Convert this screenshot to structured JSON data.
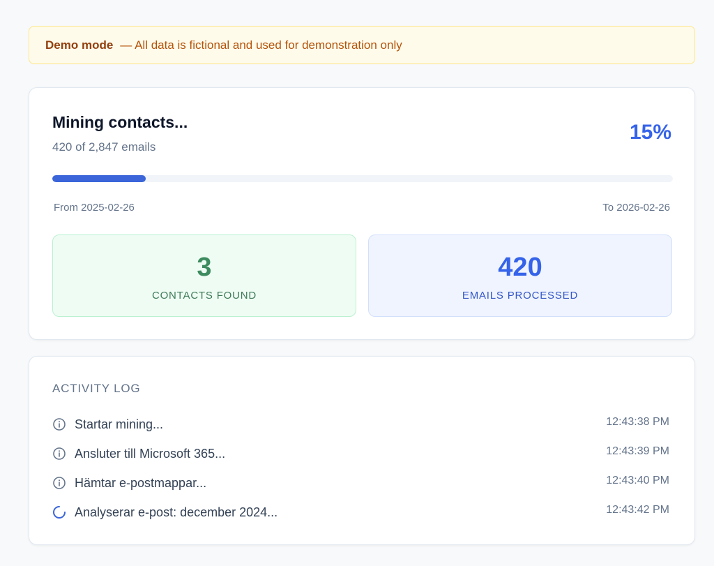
{
  "banner": {
    "title": "Demo mode",
    "message": "— All data is fictional and used for demonstration only"
  },
  "progress": {
    "title": "Mining contacts...",
    "subtitle": "420 of 2,847 emails",
    "percent_label": "15%",
    "fraction": 0.15,
    "range_from": "From 2025-02-26",
    "range_to": "To 2026-02-26"
  },
  "stats": {
    "contacts": {
      "value": "3",
      "label": "CONTACTS FOUND"
    },
    "emails": {
      "value": "420",
      "label": "EMAILS PROCESSED"
    }
  },
  "log": {
    "title": "ACTIVITY LOG",
    "items": [
      {
        "icon": "info-icon",
        "message": "Startar mining...",
        "time": "12:43:38 PM"
      },
      {
        "icon": "info-icon",
        "message": "Ansluter till Microsoft 365...",
        "time": "12:43:39 PM"
      },
      {
        "icon": "info-icon",
        "message": "Hämtar e-postmappar...",
        "time": "12:43:40 PM"
      },
      {
        "icon": "spinner-icon",
        "message": "Analyserar e-post: december 2024...",
        "time": "12:43:42 PM"
      }
    ]
  },
  "colors": {
    "accent": "#3563e9",
    "success": "#3d8b5f",
    "warning_bg": "#fffbeb"
  }
}
